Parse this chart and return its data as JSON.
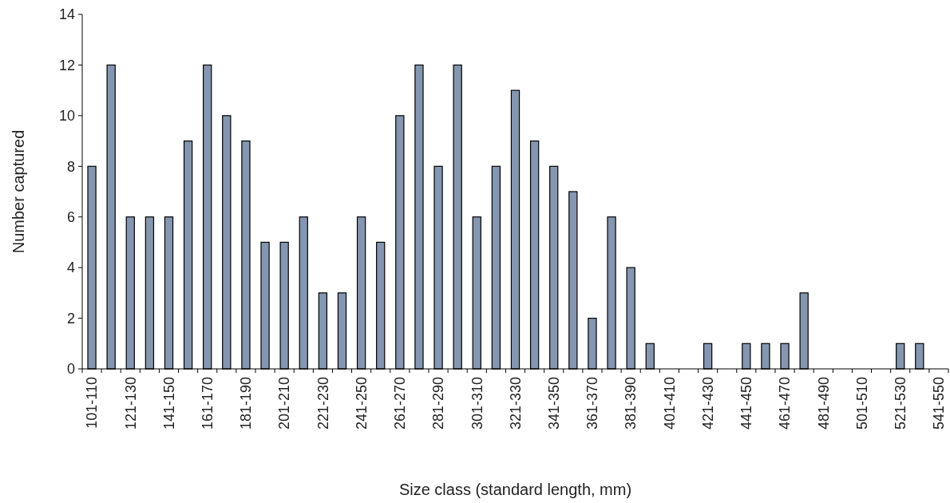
{
  "chart_data": {
    "type": "bar",
    "xlabel": "Size class (standard length, mm)",
    "ylabel": "Number captured",
    "categories": [
      "101-110",
      null,
      "121-130",
      null,
      "141-150",
      null,
      "161-170",
      null,
      "181-190",
      null,
      "201-210",
      null,
      "221-230",
      null,
      "241-250",
      null,
      "261-270",
      null,
      "281-290",
      null,
      "301-310",
      null,
      "321-330",
      null,
      "341-350",
      null,
      "361-370",
      null,
      "381-390",
      null,
      "401-410",
      null,
      "421-430",
      null,
      "441-450",
      null,
      "461-470",
      null,
      "481-490",
      null,
      "501-510",
      null,
      "521-530",
      null,
      "541-550"
    ],
    "values": [
      8,
      12,
      6,
      6,
      6,
      9,
      12,
      10,
      9,
      5,
      5,
      6,
      3,
      3,
      6,
      5,
      10,
      12,
      8,
      12,
      6,
      8,
      11,
      9,
      8,
      7,
      2,
      6,
      4,
      1,
      0,
      0,
      1,
      0,
      1,
      1,
      1,
      3,
      0,
      0,
      0,
      0,
      1,
      1,
      0
    ],
    "color": "#8496b0",
    "ylim": [
      0,
      14
    ],
    "yticks": [
      0,
      2,
      4,
      6,
      8,
      10,
      12,
      14
    ],
    "grid": false
  }
}
